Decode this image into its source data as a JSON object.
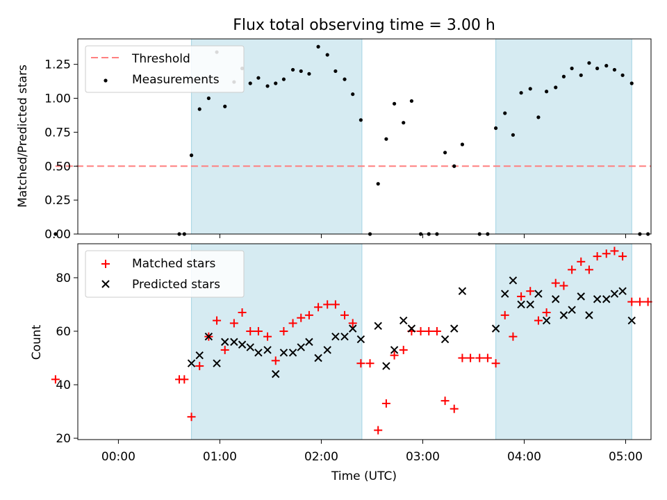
{
  "figure": {
    "title": "Flux total observing time = 3.00 h",
    "xlabel": "Time (UTC)",
    "x_ticks": [
      "00:00",
      "01:00",
      "02:00",
      "03:00",
      "04:00",
      "05:00"
    ]
  },
  "colors": {
    "shade": "#add8e6",
    "threshold": "#ff7f7f",
    "measurement": "#000000",
    "matched": "#ff0000",
    "predicted": "#000000"
  },
  "chart_data": [
    {
      "type": "scatter",
      "panel": "top",
      "ylabel": "Matched/Predicted stars",
      "xlim": [
        -0.4,
        5.25
      ],
      "ylim": [
        0,
        1.4375
      ],
      "yticks": [
        "0.00",
        "0.25",
        "0.50",
        "0.75",
        "1.00",
        "1.25"
      ],
      "shaded_intervals": [
        [
          0.72,
          2.4
        ],
        [
          3.72,
          5.06
        ]
      ],
      "threshold": {
        "name": "Threshold",
        "value": 0.5,
        "x_range": [
          -0.62,
          5.25
        ]
      },
      "legend": {
        "placement": "upper-left",
        "entries": [
          "Threshold",
          "Measurements"
        ]
      },
      "series": [
        {
          "name": "Measurements",
          "marker": "dot",
          "x": [
            -0.62,
            0.6,
            0.65,
            0.72,
            0.8,
            0.89,
            0.97,
            1.05,
            1.14,
            1.22,
            1.3,
            1.38,
            1.47,
            1.55,
            1.63,
            1.72,
            1.8,
            1.88,
            1.97,
            2.06,
            2.14,
            2.23,
            2.31,
            2.39,
            2.48,
            2.56,
            2.64,
            2.72,
            2.81,
            2.89,
            2.98,
            3.06,
            3.14,
            3.22,
            3.31,
            3.39,
            3.56,
            3.64,
            3.72,
            3.81,
            3.89,
            3.97,
            4.06,
            4.14,
            4.22,
            4.31,
            4.39,
            4.47,
            4.56,
            4.64,
            4.72,
            4.81,
            4.89,
            4.97,
            5.06,
            5.14,
            5.22
          ],
          "y": [
            0.0,
            0.0,
            0.0,
            0.58,
            0.92,
            1.0,
            1.34,
            0.94,
            1.12,
            1.22,
            1.11,
            1.15,
            1.09,
            1.11,
            1.14,
            1.21,
            1.2,
            1.18,
            1.38,
            1.32,
            1.2,
            1.14,
            1.03,
            0.84,
            0.0,
            0.37,
            0.7,
            0.96,
            0.82,
            0.98,
            0.0,
            0.0,
            0.0,
            0.6,
            0.5,
            0.66,
            0.0,
            0.0,
            0.78,
            0.89,
            0.73,
            1.04,
            1.07,
            0.86,
            1.05,
            1.08,
            1.16,
            1.22,
            1.17,
            1.26,
            1.22,
            1.24,
            1.21,
            1.17,
            1.11,
            0.0,
            0.0
          ]
        }
      ]
    },
    {
      "type": "scatter",
      "panel": "bottom",
      "ylabel": "Count",
      "xlim": [
        -0.4,
        5.25
      ],
      "ylim": [
        19.5,
        92.7
      ],
      "yticks": [
        "20",
        "40",
        "60",
        "80"
      ],
      "shaded_intervals": [
        [
          0.72,
          2.4
        ],
        [
          3.72,
          5.06
        ]
      ],
      "legend": {
        "placement": "upper-left",
        "entries": [
          "Matched stars",
          "Predicted stars"
        ]
      },
      "series": [
        {
          "name": "Matched stars",
          "marker": "plus",
          "x": [
            -0.62,
            0.6,
            0.65,
            0.72,
            0.8,
            0.89,
            0.97,
            1.05,
            1.14,
            1.22,
            1.3,
            1.38,
            1.47,
            1.55,
            1.63,
            1.72,
            1.8,
            1.88,
            1.97,
            2.06,
            2.14,
            2.23,
            2.31,
            2.39,
            2.48,
            2.56,
            2.64,
            2.72,
            2.81,
            2.89,
            2.98,
            3.06,
            3.14,
            3.22,
            3.31,
            3.39,
            3.47,
            3.56,
            3.64,
            3.72,
            3.81,
            3.89,
            3.97,
            4.06,
            4.14,
            4.22,
            4.31,
            4.39,
            4.47,
            4.56,
            4.64,
            4.72,
            4.81,
            4.89,
            4.97,
            5.06,
            5.14,
            5.22
          ],
          "y": [
            42,
            42,
            42,
            28,
            47,
            58,
            64,
            53,
            63,
            67,
            60,
            60,
            58,
            49,
            60,
            63,
            65,
            66,
            69,
            70,
            70,
            66,
            63,
            48,
            48,
            23,
            33,
            51,
            53,
            60,
            60,
            60,
            60,
            34,
            31,
            50,
            50,
            50,
            50,
            48,
            66,
            58,
            73,
            75,
            64,
            67,
            78,
            77,
            83,
            86,
            83,
            88,
            89,
            90,
            88,
            71,
            71,
            71
          ]
        },
        {
          "name": "Predicted stars",
          "marker": "cross",
          "x": [
            0.72,
            0.8,
            0.89,
            0.97,
            1.05,
            1.14,
            1.22,
            1.3,
            1.38,
            1.47,
            1.55,
            1.63,
            1.72,
            1.8,
            1.88,
            1.97,
            2.06,
            2.14,
            2.23,
            2.31,
            2.39,
            2.56,
            2.64,
            2.72,
            2.81,
            2.89,
            3.22,
            3.31,
            3.39,
            3.72,
            3.81,
            3.89,
            3.97,
            4.06,
            4.14,
            4.22,
            4.31,
            4.39,
            4.47,
            4.56,
            4.64,
            4.72,
            4.81,
            4.89,
            4.97,
            5.06
          ],
          "y": [
            48,
            51,
            58,
            48,
            56,
            56,
            55,
            54,
            52,
            53,
            44,
            52,
            52,
            54,
            56,
            50,
            53,
            58,
            58,
            61,
            57,
            62,
            47,
            53,
            64,
            61,
            57,
            61,
            75,
            61,
            74,
            79,
            70,
            70,
            74,
            64,
            72,
            66,
            68,
            73,
            66,
            72,
            72,
            74,
            75,
            64
          ]
        }
      ]
    }
  ]
}
